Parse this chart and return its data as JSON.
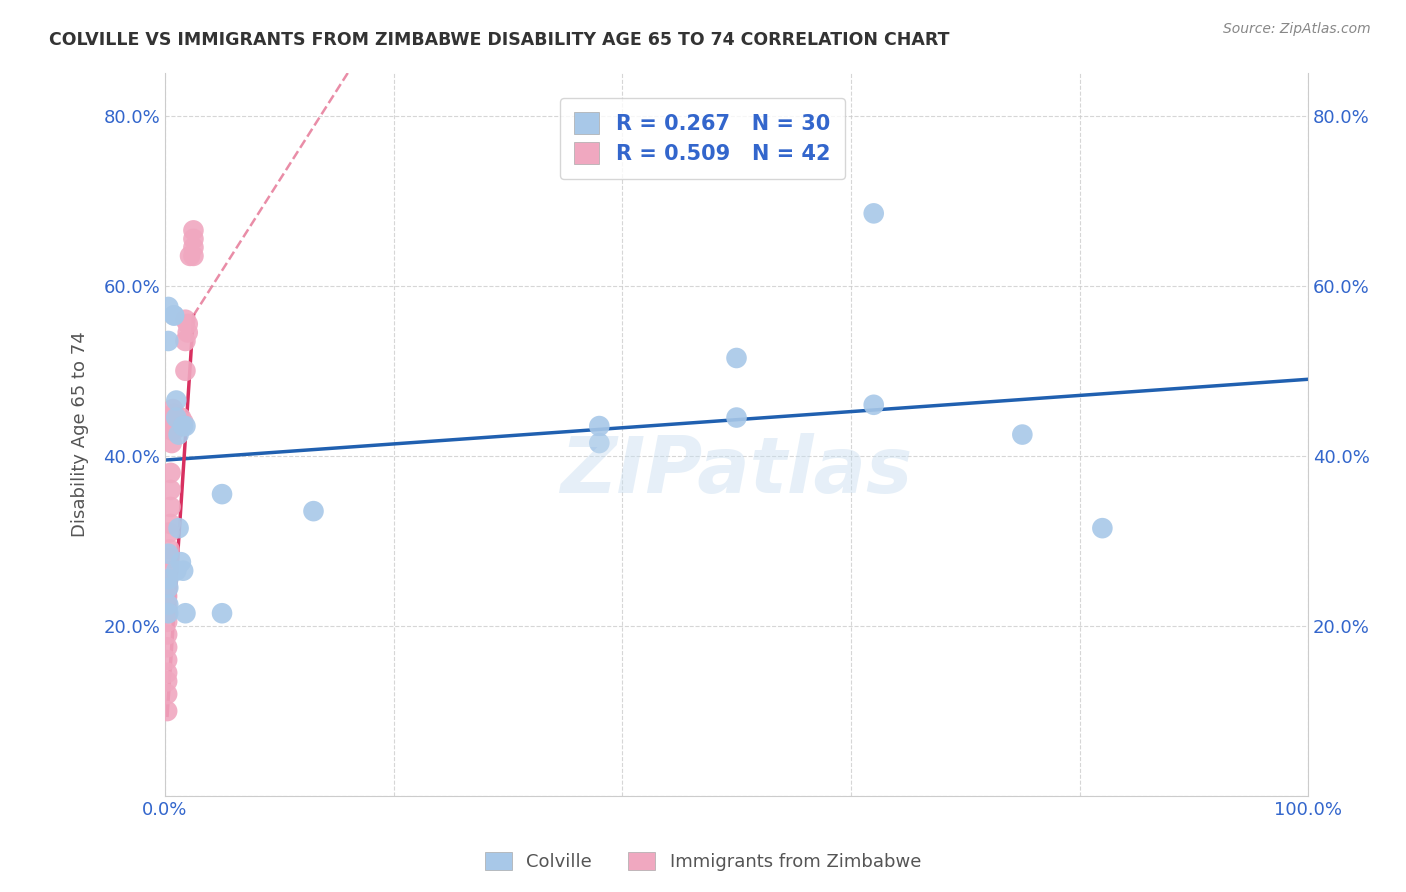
{
  "title": "COLVILLE VS IMMIGRANTS FROM ZIMBABWE DISABILITY AGE 65 TO 74 CORRELATION CHART",
  "source": "Source: ZipAtlas.com",
  "ylabel": "Disability Age 65 to 74",
  "xlim": [
    0,
    1.0
  ],
  "ylim": [
    0,
    0.85
  ],
  "xtick_positions": [
    0.0,
    0.2,
    0.4,
    0.6,
    0.8,
    1.0
  ],
  "xticklabels": [
    "0.0%",
    "",
    "",
    "",
    "",
    "100.0%"
  ],
  "ytick_positions": [
    0.0,
    0.2,
    0.4,
    0.6,
    0.8
  ],
  "yticklabels": [
    "",
    "20.0%",
    "40.0%",
    "60.0%",
    "80.0%"
  ],
  "legend_blue_r": "0.267",
  "legend_blue_n": "30",
  "legend_pink_r": "0.509",
  "legend_pink_n": "42",
  "blue_color": "#a8c8e8",
  "pink_color": "#f0a8c0",
  "blue_line_color": "#2060b0",
  "pink_line_color": "#d83060",
  "watermark": "ZIPatlas",
  "blue_x": [
    0.003,
    0.003,
    0.008,
    0.008,
    0.01,
    0.01,
    0.012,
    0.012,
    0.014,
    0.016,
    0.016,
    0.018,
    0.05,
    0.13,
    0.38,
    0.38,
    0.5,
    0.5,
    0.62,
    0.62,
    0.75,
    0.82,
    0.003,
    0.003,
    0.003,
    0.003,
    0.003,
    0.01,
    0.018,
    0.05
  ],
  "blue_y": [
    0.575,
    0.535,
    0.565,
    0.565,
    0.465,
    0.445,
    0.425,
    0.315,
    0.275,
    0.265,
    0.435,
    0.435,
    0.355,
    0.335,
    0.415,
    0.435,
    0.445,
    0.515,
    0.46,
    0.685,
    0.425,
    0.315,
    0.285,
    0.255,
    0.245,
    0.225,
    0.215,
    0.265,
    0.215,
    0.215
  ],
  "pink_x": [
    0.002,
    0.002,
    0.002,
    0.002,
    0.002,
    0.002,
    0.002,
    0.002,
    0.002,
    0.002,
    0.002,
    0.002,
    0.002,
    0.002,
    0.004,
    0.004,
    0.004,
    0.005,
    0.005,
    0.005,
    0.005,
    0.006,
    0.006,
    0.006,
    0.007,
    0.007,
    0.008,
    0.008,
    0.01,
    0.012,
    0.014,
    0.016,
    0.018,
    0.018,
    0.018,
    0.02,
    0.02,
    0.022,
    0.025,
    0.025,
    0.025,
    0.025
  ],
  "pink_y": [
    0.1,
    0.12,
    0.135,
    0.145,
    0.16,
    0.175,
    0.19,
    0.205,
    0.215,
    0.225,
    0.235,
    0.245,
    0.255,
    0.265,
    0.28,
    0.29,
    0.31,
    0.32,
    0.34,
    0.36,
    0.38,
    0.415,
    0.43,
    0.445,
    0.44,
    0.455,
    0.43,
    0.45,
    0.445,
    0.44,
    0.445,
    0.44,
    0.5,
    0.535,
    0.56,
    0.545,
    0.555,
    0.635,
    0.665,
    0.635,
    0.645,
    0.655
  ],
  "blue_line_x0": 0.0,
  "blue_line_y0": 0.395,
  "blue_line_x1": 1.0,
  "blue_line_y1": 0.49,
  "pink_line_solid_x0": 0.002,
  "pink_line_solid_y0": 0.095,
  "pink_line_solid_x1": 0.025,
  "pink_line_solid_y1": 0.565,
  "pink_line_dashed_x0": 0.025,
  "pink_line_dashed_y0": 0.565,
  "pink_line_dashed_x1": 0.16,
  "pink_line_dashed_y1": 0.85
}
